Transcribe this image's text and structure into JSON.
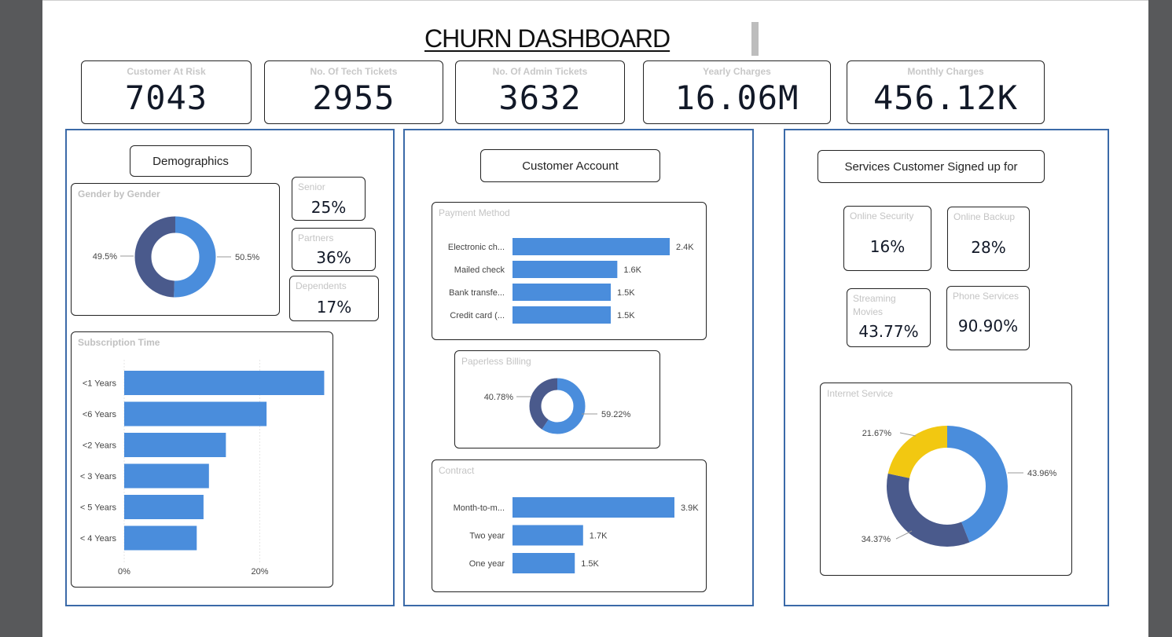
{
  "title": "CHURN DASHBOARD",
  "kpis": [
    {
      "label": "Customer At Risk",
      "value": "7043"
    },
    {
      "label": "No. Of Tech Tickets",
      "value": "2955"
    },
    {
      "label": "No. Of Admin Tickets",
      "value": "3632"
    },
    {
      "label": "Yearly Charges",
      "value": "16.06M"
    },
    {
      "label": "Monthly Charges",
      "value": "456.12K"
    }
  ],
  "demographics": {
    "header": "Demographics",
    "senior": {
      "label": "Senior",
      "value": "25%"
    },
    "partners": {
      "label": "Partners",
      "value": "36%"
    },
    "dependents": {
      "label": "Dependents",
      "value": "17%"
    }
  },
  "account": {
    "header": "Customer Account"
  },
  "services": {
    "header": "Services Customer Signed up for",
    "online_security": {
      "label": "Online Security",
      "value": "16%"
    },
    "online_backup": {
      "label": "Online Backup",
      "value": "28%"
    },
    "streaming_movies": {
      "label": "Streaming Movies",
      "value": "43.77%"
    },
    "phone_services": {
      "label": "Phone Services",
      "value": "90.90%"
    }
  },
  "colors": {
    "blue": "#4a8ddc",
    "navy": "#4a5a8c",
    "yellow": "#f2c811",
    "panel_border": "#3b6aa8"
  },
  "chart_data": [
    {
      "id": "gender",
      "type": "pie",
      "title": "Gender by Gender",
      "slices": [
        {
          "value": 50.5,
          "label": "50.5%",
          "color": "#4a8ddc"
        },
        {
          "value": 49.5,
          "label": "49.5%",
          "color": "#4a5a8c"
        }
      ]
    },
    {
      "id": "subscription",
      "type": "bar",
      "title": "Subscription Time",
      "categories": [
        "<1 Years",
        "<6 Years",
        "<2 Years",
        "< 3 Years",
        "< 5 Years",
        "< 4 Years"
      ],
      "values": [
        29.5,
        21,
        15,
        12.5,
        11.7,
        10.7
      ],
      "xlim": [
        0,
        32
      ],
      "ticks": [
        {
          "value": 0,
          "label": "0%"
        },
        {
          "value": 20,
          "label": "20%"
        }
      ],
      "grid": true,
      "color": "#4a8ddc"
    },
    {
      "id": "payment",
      "type": "bar",
      "title": "Payment Method",
      "categories": [
        "Electronic ch...",
        "Mailed check",
        "Bank transfe...",
        "Credit card (..."
      ],
      "values": [
        2.4,
        1.6,
        1.5,
        1.5
      ],
      "labels": [
        "2.4K",
        "1.6K",
        "1.5K",
        "1.5K"
      ],
      "xlim": [
        0,
        2.4
      ],
      "color": "#4a8ddc"
    },
    {
      "id": "paperless",
      "type": "pie",
      "title": "Paperless Billing",
      "slices": [
        {
          "value": 59.22,
          "label": "59.22%",
          "color": "#4a8ddc"
        },
        {
          "value": 40.78,
          "label": "40.78%",
          "color": "#4a5a8c"
        }
      ]
    },
    {
      "id": "contract",
      "type": "bar",
      "title": "Contract",
      "categories": [
        "Month-to-m...",
        "Two year",
        "One year"
      ],
      "values": [
        3.9,
        1.7,
        1.5
      ],
      "labels": [
        "3.9K",
        "1.7K",
        "1.5K"
      ],
      "xlim": [
        0,
        3.9
      ],
      "color": "#4a8ddc"
    },
    {
      "id": "internet",
      "type": "pie",
      "title": "Internet Service",
      "slices": [
        {
          "value": 43.96,
          "label": "43.96%",
          "color": "#4a8ddc"
        },
        {
          "value": 34.37,
          "label": "34.37%",
          "color": "#4a5a8c"
        },
        {
          "value": 21.67,
          "label": "21.67%",
          "color": "#f2c811"
        }
      ]
    }
  ]
}
